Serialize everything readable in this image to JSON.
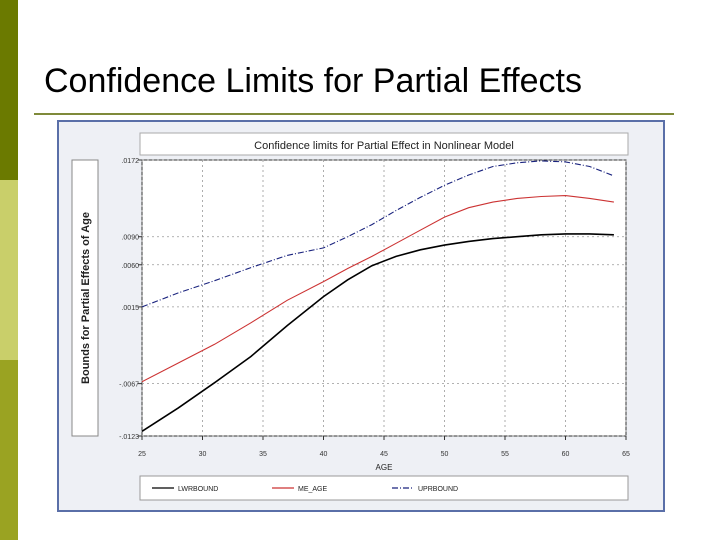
{
  "slide": {
    "title": "Confidence Limits for Partial Effects",
    "colors": {
      "accent_bar": "#6b7a00",
      "accent_bar_light": "#c9cf6a",
      "rule": "#7f8a3a"
    }
  },
  "chart_data": {
    "type": "line",
    "title": "Confidence limits for Partial Effect in Nonlinear Model",
    "xlabel": "AGE",
    "ylabel": "Bounds for Partial Effects of Age",
    "xlim": [
      25,
      65
    ],
    "ylim": [
      -0.0123,
      0.0172
    ],
    "x_ticks": [
      "25",
      "30",
      "35",
      "40",
      "45",
      "50",
      "55",
      "60",
      "65"
    ],
    "y_ticks": [
      {
        "value": -0.0123,
        "label": "-.0123"
      },
      {
        "value": -0.0067,
        "label": "-.0067"
      },
      {
        "value": 0.0015,
        "label": ".0015"
      },
      {
        "value": 0.006,
        "label": ".0060"
      },
      {
        "value": 0.009,
        "label": ".0090"
      },
      {
        "value": 0.0172,
        "label": ".0172"
      }
    ],
    "grid": true,
    "legend_position": "bottom",
    "x": [
      25,
      28,
      31,
      34,
      37,
      40,
      42,
      44,
      46,
      48,
      50,
      52,
      54,
      56,
      58,
      60,
      62,
      64
    ],
    "series": [
      {
        "name": "LWRBOUND",
        "color": "#000000",
        "dash": "solid",
        "values": [
          -0.0118,
          -0.0093,
          -0.0066,
          -0.0038,
          -0.0005,
          0.0026,
          0.0044,
          0.0059,
          0.0069,
          0.0076,
          0.0081,
          0.0085,
          0.0088,
          0.009,
          0.0092,
          0.0093,
          0.0093,
          0.0092
        ]
      },
      {
        "name": "ME_AGE",
        "color": "#cc3333",
        "dash": "solid",
        "values": [
          -0.0065,
          -0.0045,
          -0.0025,
          -0.0002,
          0.0022,
          0.0042,
          0.0056,
          0.0069,
          0.0083,
          0.0097,
          0.0111,
          0.0121,
          0.0127,
          0.0131,
          0.0133,
          0.0134,
          0.0131,
          0.0127
        ]
      },
      {
        "name": "UPRBOUND",
        "color": "#1a237e",
        "dash": "dashdot",
        "values": [
          0.0015,
          0.003,
          0.0043,
          0.0057,
          0.007,
          0.0078,
          0.009,
          0.0103,
          0.0118,
          0.0132,
          0.0145,
          0.0156,
          0.0165,
          0.0169,
          0.0171,
          0.017,
          0.0165,
          0.0155
        ]
      }
    ]
  }
}
